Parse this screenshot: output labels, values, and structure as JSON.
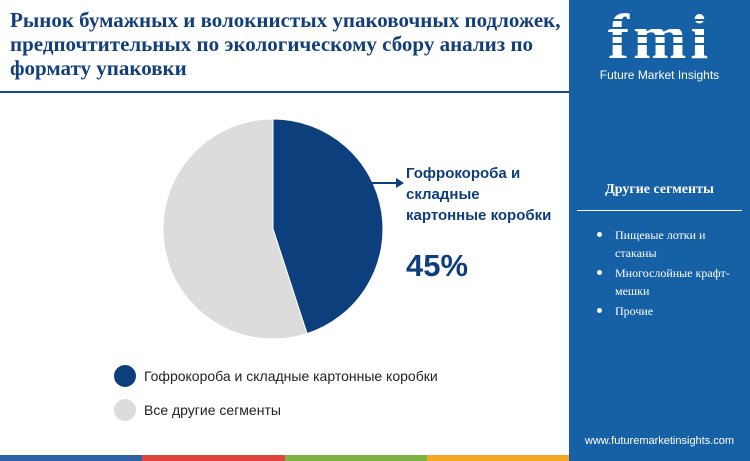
{
  "title": "Рынок бумажных и волокнистых упаковочных подложек, предпочтительных по экологическому сбору анализ по формату упаковки",
  "chart_data": {
    "type": "pie",
    "series": [
      {
        "name": "Гофрокороба и складные картонные коробки",
        "value": 45,
        "color": "#0d3f7d"
      },
      {
        "name": "Все другие сегменты",
        "value": 55,
        "color": "#dcdcdc"
      }
    ],
    "callout": {
      "label": "Гофрокороба и складные картонные коробки",
      "value_text": "45%"
    },
    "legend_position": "bottom-left"
  },
  "legend": [
    {
      "label": "Гофрокороба и складные картонные коробки",
      "color": "#0d3f7d"
    },
    {
      "label": "Все другие сегменты",
      "color": "#dcdcdc"
    }
  ],
  "sidebar": {
    "brand": "fmi",
    "brand_sub": "Future Market Insights",
    "segments_title": "Другие сегменты",
    "segments": [
      "Пищевые лотки и стаканы",
      "Многослойные крафт-мешки",
      "Прочие"
    ],
    "website": "www.futuremarketinsights.com",
    "background_color": "#1660a5"
  },
  "bottom_bar_colors": [
    "#2e62a8",
    "#e0443c",
    "#7cb342",
    "#f5a623"
  ]
}
